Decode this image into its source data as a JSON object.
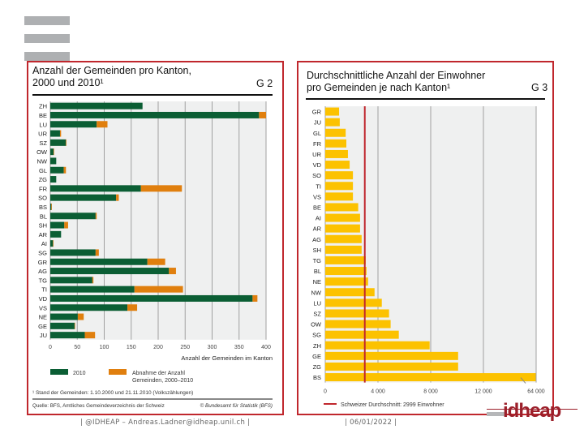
{
  "slide": {
    "footer_left": "| @IDHEAP – Andreas.Ladner@idheap.unil.ch |",
    "footer_date": "| 06/01/2022 |",
    "logo_text": "idheap"
  },
  "chart_data": [
    {
      "type": "bar",
      "stacked": true,
      "orientation": "horizontal",
      "title": "Anzahl der Gemeinden pro Kanton, 2000 und 2010¹",
      "figure_label": "G 2",
      "xlabel": "Anzahl der Gemeinden im Kanton",
      "xlim": [
        0,
        400
      ],
      "xticks": [
        0,
        50,
        100,
        150,
        200,
        250,
        300,
        350,
        400
      ],
      "grid": true,
      "legend_position": "bottom",
      "categories": [
        "ZH",
        "BE",
        "LU",
        "UR",
        "SZ",
        "OW",
        "NW",
        "GL",
        "ZG",
        "FR",
        "SO",
        "BS",
        "BL",
        "SH",
        "AR",
        "AI",
        "SG",
        "GR",
        "AG",
        "TG",
        "TI",
        "VD",
        "VS",
        "NE",
        "GE",
        "JU"
      ],
      "series": [
        {
          "name": "2010",
          "color": "#0b5e34",
          "values": [
            171,
            387,
            86,
            18,
            29,
            6,
            11,
            25,
            11,
            168,
            122,
            2,
            84,
            26,
            20,
            5,
            84,
            180,
            220,
            78,
            156,
            375,
            143,
            51,
            45,
            64
          ]
        },
        {
          "name": "Abnahme der Anzahl Gemeinden, 2000–2010",
          "color": "#e07f0e",
          "values": [
            0,
            13,
            20,
            2,
            1,
            1,
            0,
            4,
            0,
            76,
            5,
            1,
            2,
            7,
            0,
            1,
            6,
            33,
            13,
            2,
            90,
            9,
            18,
            11,
            1,
            19
          ]
        }
      ],
      "footnote": "¹ Stand der Gemeinden: 1.10.2000 und 21.11.2010 (Volkszählungen)",
      "source": "Quelle: BFS, Amtliches Gemeindeverzeichnis der Schweiz",
      "copyright": "© Bundesamt für Statistik (BFS)"
    },
    {
      "type": "bar",
      "orientation": "horizontal",
      "title": "Durchschnittliche Anzahl der Einwohner pro Gemeinden je nach Kanton¹",
      "figure_label": "G 3",
      "xlabel": "",
      "xticks": [
        "0",
        "4 000",
        "8 000",
        "12 000",
        "64 000"
      ],
      "xlim": [
        0,
        16000
      ],
      "axis_break": "between 12 000 and 64 000",
      "grid": true,
      "legend_position": "bottom",
      "categories": [
        "GR",
        "JU",
        "GL",
        "FR",
        "UR",
        "VD",
        "SO",
        "TI",
        "VS",
        "BE",
        "AI",
        "AR",
        "AG",
        "SH",
        "TG",
        "BL",
        "NE",
        "NW",
        "LU",
        "SZ",
        "OW",
        "SG",
        "ZH",
        "GE",
        "ZG",
        "BS"
      ],
      "series": [
        {
          "name": "Einwohner pro Gemeinde",
          "color": "#fcc200",
          "values": [
            1050,
            1100,
            1550,
            1600,
            1720,
            1850,
            2100,
            2100,
            2100,
            2500,
            2640,
            2640,
            2760,
            2760,
            3070,
            3130,
            3250,
            3740,
            4290,
            4840,
            4960,
            5580,
            7920,
            10080,
            10080,
            63600
          ]
        }
      ],
      "reference_line": {
        "label": "Schweizer Durchschnitt: 2999 Einwohner",
        "value": 2999,
        "color": "#c0272d"
      }
    }
  ]
}
